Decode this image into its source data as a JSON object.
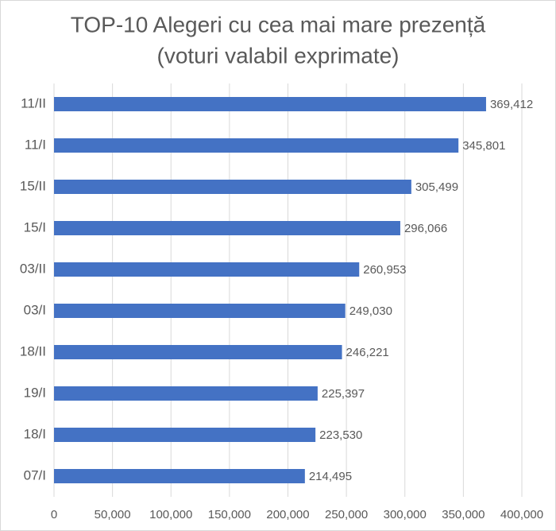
{
  "chart_data": {
    "type": "hbar",
    "title": [
      "TOP-10 Alegeri cu cea mai mare prezență",
      "(voturi valabil exprimate)"
    ],
    "categories": [
      "11/II",
      "11/I",
      "15/II",
      "15/I",
      "03/II",
      "03/I",
      "18/II",
      "19/I",
      "18/I",
      "07/I"
    ],
    "values": [
      369412,
      345801,
      305499,
      296066,
      260953,
      249030,
      246221,
      225397,
      223530,
      214495
    ],
    "value_labels": [
      "369,412",
      "345,801",
      "305,499",
      "296,066",
      "260,953",
      "249,030",
      "246,221",
      "225,397",
      "223,530",
      "214,495"
    ],
    "color": "#4472c4",
    "xlim": [
      0,
      400000
    ],
    "xticks": [
      0,
      {
        "value": 50000,
        "label": "50,000"
      },
      {
        "value": 100000,
        "label": "100,000"
      },
      {
        "value": 150000,
        "label": "150,000"
      },
      {
        "value": 200000,
        "label": "200,000"
      },
      {
        "value": 250000,
        "label": "250,000"
      },
      {
        "value": 300000,
        "label": "300,000"
      },
      {
        "value": 350000,
        "label": "350,000"
      },
      {
        "value": 400000,
        "label": "400,000"
      }
    ],
    "grid": true
  }
}
